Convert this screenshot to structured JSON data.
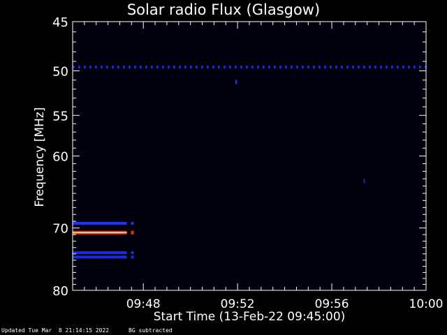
{
  "chart_data": {
    "type": "heatmap",
    "title": "Solar radio Flux (Glasgow)",
    "xlabel": "Start Time (13-Feb-22 09:45:00)",
    "ylabel": "Frequency [MHz]",
    "x_range_minutes_after_0945": [
      0,
      15
    ],
    "x_ticks": [
      {
        "label": "09:48",
        "minutes": 3
      },
      {
        "label": "09:52",
        "minutes": 7
      },
      {
        "label": "09:56",
        "minutes": 11
      },
      {
        "label": "10:00",
        "minutes": 15
      }
    ],
    "y_scale": "log",
    "y_range_mhz": [
      45,
      80
    ],
    "y_inverted": true,
    "y_ticks": [
      45,
      50,
      55,
      60,
      70,
      80
    ],
    "y_tick_labels": [
      "45",
      "50",
      "55",
      "60",
      "70",
      "80"
    ],
    "background_color": "#00000c",
    "features": [
      {
        "name": "Interference line (blue)",
        "freq_mhz": 49.6,
        "start_min": 0,
        "end_min": 15,
        "color": "#1a2bd6",
        "style": "dashed"
      },
      {
        "name": "Band (blue)",
        "freq_mhz": 69.3,
        "start_min": 0,
        "end_min": 2.3,
        "color": "#1d33ff",
        "gap_end_min": 2.5
      },
      {
        "name": "Band (red)",
        "freq_mhz": 70.7,
        "start_min": 0,
        "end_min": 2.3,
        "color": "#ff2a00",
        "gap_end_min": 2.5
      },
      {
        "name": "Band (blue)",
        "freq_mhz": 73.8,
        "start_min": 0,
        "end_min": 2.3,
        "color": "#1a2be0",
        "gap_end_min": 2.5
      },
      {
        "name": "Band (blue)",
        "freq_mhz": 74.5,
        "start_min": 0,
        "end_min": 2.3,
        "color": "#1a2be0",
        "gap_end_min": 2.5
      },
      {
        "name": "Spot",
        "freq_mhz": 51.2,
        "start_min": 6.9,
        "end_min": 6.98,
        "color": "#2233cc"
      },
      {
        "name": "Spot",
        "freq_mhz": 63.3,
        "start_min": 12.35,
        "end_min": 12.4,
        "color": "#1c28a8"
      }
    ]
  },
  "footer": {
    "updated": "Updated Tue Mar  8 21:14:15 2022",
    "note": "BG subtracted"
  }
}
